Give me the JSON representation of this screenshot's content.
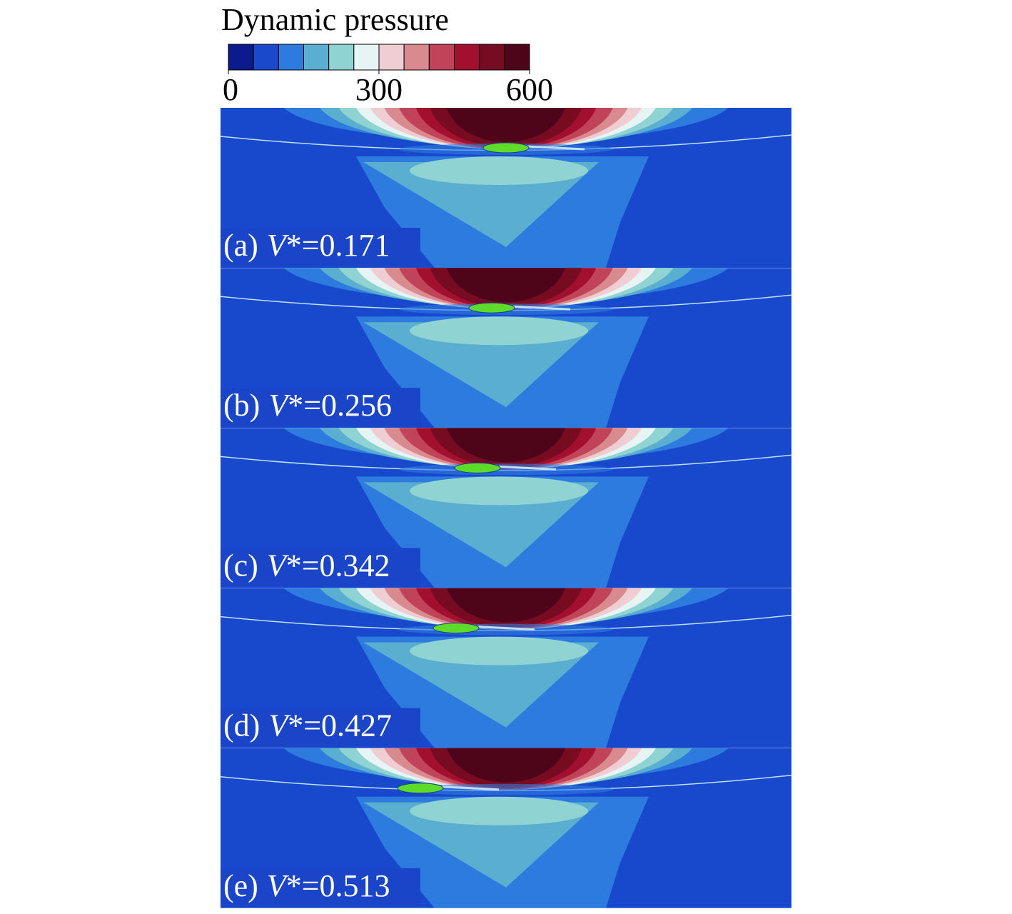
{
  "colorbar": {
    "title": "Dynamic pressure",
    "range": [
      0,
      600
    ],
    "ticks": [
      0,
      300,
      600
    ],
    "colors": [
      "#0b1a8c",
      "#1a4acb",
      "#2e7be0",
      "#5aaed0",
      "#90d3d3",
      "#e6f4f4",
      "#efcdd2",
      "#d98a8e",
      "#c0435a",
      "#a3102f",
      "#760b22",
      "#4e0519"
    ]
  },
  "panels": [
    {
      "tag": "(a)",
      "symbol": "V",
      "rest": "*=0.171"
    },
    {
      "tag": "(b)",
      "symbol": "V",
      "rest": "*=0.256"
    },
    {
      "tag": "(c)",
      "symbol": "V",
      "rest": "*=0.342"
    },
    {
      "tag": "(d)",
      "symbol": "V",
      "rest": "*=0.427"
    },
    {
      "tag": "(e)",
      "symbol": "V",
      "rest": "*=0.513"
    }
  ]
}
